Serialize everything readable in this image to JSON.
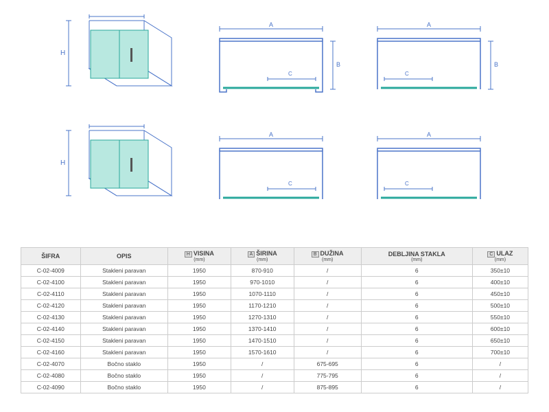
{
  "colors": {
    "line": "#4a74c9",
    "glass_fill": "#b8e8e0",
    "glass_stroke": "#2aa89c",
    "track": "#2aa89c",
    "bg": "#ffffff",
    "table_border": "#cccccc",
    "table_header_bg": "#eeeeee",
    "text": "#444444"
  },
  "diagrams": {
    "row1_has_side_panel_B": true,
    "row2_has_side_panel_B": false,
    "labels": {
      "H": "H",
      "A": "A",
      "B": "B",
      "C": "C"
    }
  },
  "table": {
    "headers": {
      "sifra": "ŠIFRA",
      "opis": "OPIS",
      "visina": "VISINA",
      "visina_badge": "H",
      "visina_unit": "(mm)",
      "sirina": "ŠIRINA",
      "sirina_badge": "A",
      "sirina_unit": "(mm)",
      "duzina": "DUŽINA",
      "duzina_badge": "B",
      "duzina_unit": "(mm)",
      "debljina": "DEBLJINA STAKLA",
      "debljina_unit": "(mm)",
      "ulaz": "ULAZ",
      "ulaz_badge": "C",
      "ulaz_unit": "(mm)"
    },
    "rows": [
      {
        "sifra": "C-02-4009",
        "opis": "Stakleni paravan",
        "visina": "1950",
        "sirina": "870-910",
        "duzina": "/",
        "debljina": "6",
        "ulaz": "350±10"
      },
      {
        "sifra": "C-02-4100",
        "opis": "Stakleni paravan",
        "visina": "1950",
        "sirina": "970-1010",
        "duzina": "/",
        "debljina": "6",
        "ulaz": "400±10"
      },
      {
        "sifra": "C-02-4110",
        "opis": "Stakleni paravan",
        "visina": "1950",
        "sirina": "1070-1110",
        "duzina": "/",
        "debljina": "6",
        "ulaz": "450±10"
      },
      {
        "sifra": "C-02-4120",
        "opis": "Stakleni paravan",
        "visina": "1950",
        "sirina": "1170-1210",
        "duzina": "/",
        "debljina": "6",
        "ulaz": "500±10"
      },
      {
        "sifra": "C-02-4130",
        "opis": "Stakleni paravan",
        "visina": "1950",
        "sirina": "1270-1310",
        "duzina": "/",
        "debljina": "6",
        "ulaz": "550±10"
      },
      {
        "sifra": "C-02-4140",
        "opis": "Stakleni paravan",
        "visina": "1950",
        "sirina": "1370-1410",
        "duzina": "/",
        "debljina": "6",
        "ulaz": "600±10"
      },
      {
        "sifra": "C-02-4150",
        "opis": "Stakleni paravan",
        "visina": "1950",
        "sirina": "1470-1510",
        "duzina": "/",
        "debljina": "6",
        "ulaz": "650±10"
      },
      {
        "sifra": "C-02-4160",
        "opis": "Stakleni paravan",
        "visina": "1950",
        "sirina": "1570-1610",
        "duzina": "/",
        "debljina": "6",
        "ulaz": "700±10"
      },
      {
        "sifra": "C-02-4070",
        "opis": "Bočno staklo",
        "visina": "1950",
        "sirina": "/",
        "duzina": "675-695",
        "debljina": "6",
        "ulaz": "/"
      },
      {
        "sifra": "C-02-4080",
        "opis": "Bočno staklo",
        "visina": "1950",
        "sirina": "/",
        "duzina": "775-795",
        "debljina": "6",
        "ulaz": "/"
      },
      {
        "sifra": "C-02-4090",
        "opis": "Bočno staklo",
        "visina": "1950",
        "sirina": "/",
        "duzina": "875-895",
        "debljina": "6",
        "ulaz": "/"
      }
    ]
  }
}
